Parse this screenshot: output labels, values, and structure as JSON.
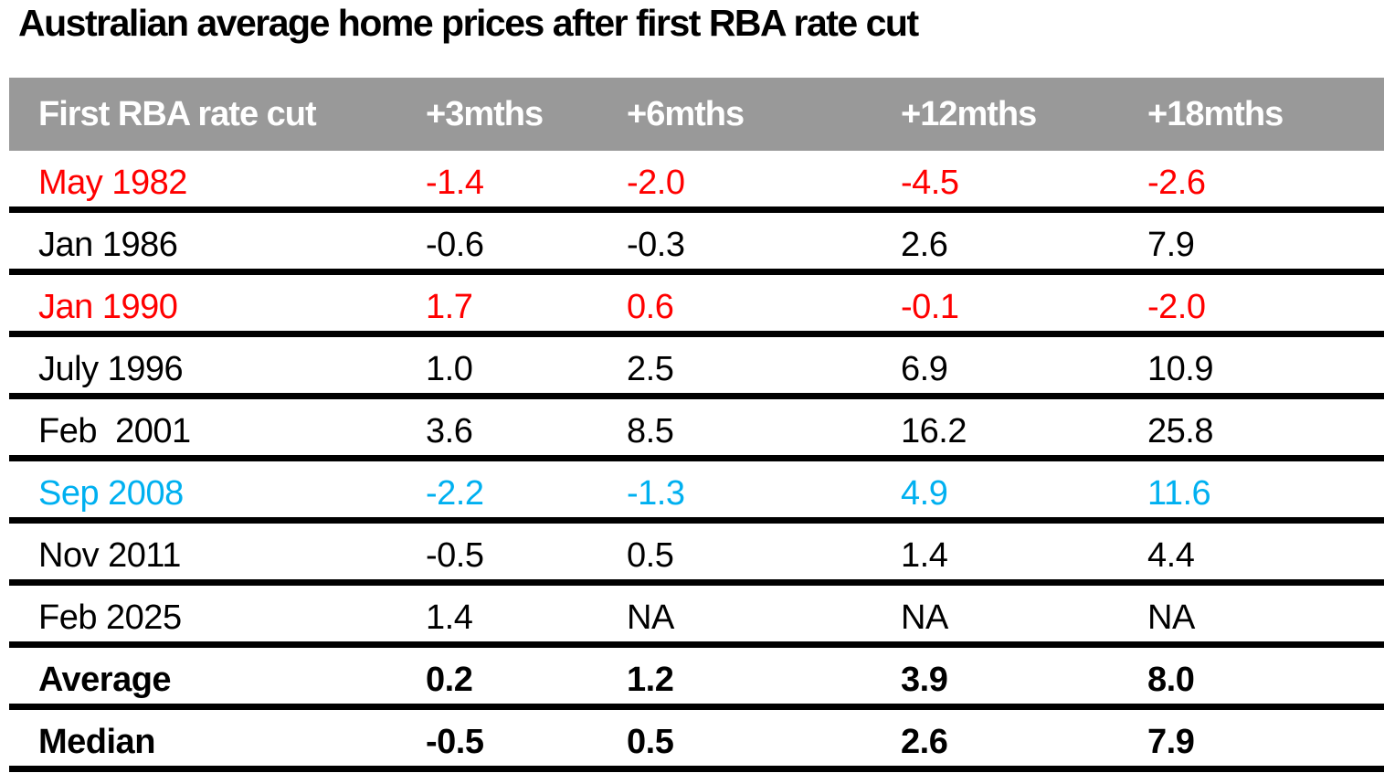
{
  "title": "Australian average home prices after first RBA rate cut",
  "colors": {
    "header_bg": "#999999",
    "header_text": "#ffffff",
    "separator": "#000000",
    "black": "#000000",
    "red": "#ff0000",
    "blue": "#00b0f0"
  },
  "table": {
    "columns": [
      "First RBA rate cut",
      "+3mths",
      "+6mths",
      "+12mths",
      "+18mths"
    ],
    "rows": [
      {
        "label": "May 1982",
        "values": [
          "-1.4",
          "-2.0",
          "-4.5",
          "-2.6"
        ],
        "color": "red",
        "bold": false
      },
      {
        "label": "Jan 1986",
        "values": [
          "-0.6",
          "-0.3",
          "2.6",
          "7.9"
        ],
        "color": "black",
        "bold": false
      },
      {
        "label": "Jan 1990",
        "values": [
          "1.7",
          "0.6",
          "-0.1",
          "-2.0"
        ],
        "color": "red",
        "bold": false
      },
      {
        "label": "July 1996",
        "values": [
          "1.0",
          "2.5",
          "6.9",
          "10.9"
        ],
        "color": "black",
        "bold": false
      },
      {
        "label": "Feb  2001",
        "values": [
          "3.6",
          "8.5",
          "16.2",
          "25.8"
        ],
        "color": "black",
        "bold": false
      },
      {
        "label": "Sep 2008",
        "values": [
          "-2.2",
          "-1.3",
          "4.9",
          "11.6"
        ],
        "color": "blue",
        "bold": false
      },
      {
        "label": "Nov 2011",
        "values": [
          "-0.5",
          "0.5",
          "1.4",
          "4.4"
        ],
        "color": "black",
        "bold": false
      },
      {
        "label": "Feb 2025",
        "values": [
          "1.4",
          "NA",
          "NA",
          "NA"
        ],
        "color": "black",
        "bold": false
      },
      {
        "label": "Average",
        "values": [
          "0.2",
          "1.2",
          "3.9",
          "8.0"
        ],
        "color": "black",
        "bold": true
      },
      {
        "label": "Median",
        "values": [
          "-0.5",
          "0.5",
          "2.6",
          "7.9"
        ],
        "color": "black",
        "bold": true
      }
    ]
  },
  "chart_data": {
    "type": "table",
    "title": "Australian average home prices after first RBA rate cut",
    "columns": [
      "First RBA rate cut",
      "+3mths",
      "+6mths",
      "+12mths",
      "+18mths"
    ],
    "rows": [
      {
        "label": "May 1982",
        "values": [
          -1.4,
          -2.0,
          -4.5,
          -2.6
        ],
        "highlight": "red"
      },
      {
        "label": "Jan 1986",
        "values": [
          -0.6,
          -0.3,
          2.6,
          7.9
        ],
        "highlight": "none"
      },
      {
        "label": "Jan 1990",
        "values": [
          1.7,
          0.6,
          -0.1,
          -2.0
        ],
        "highlight": "red"
      },
      {
        "label": "July 1996",
        "values": [
          1.0,
          2.5,
          6.9,
          10.9
        ],
        "highlight": "none"
      },
      {
        "label": "Feb 2001",
        "values": [
          3.6,
          8.5,
          16.2,
          25.8
        ],
        "highlight": "none"
      },
      {
        "label": "Sep 2008",
        "values": [
          -2.2,
          -1.3,
          4.9,
          11.6
        ],
        "highlight": "blue"
      },
      {
        "label": "Nov 2011",
        "values": [
          -0.5,
          0.5,
          1.4,
          4.4
        ],
        "highlight": "none"
      },
      {
        "label": "Feb 2025",
        "values": [
          1.4,
          "NA",
          "NA",
          "NA"
        ],
        "highlight": "none"
      },
      {
        "label": "Average",
        "values": [
          0.2,
          1.2,
          3.9,
          8.0
        ],
        "highlight": "bold"
      },
      {
        "label": "Median",
        "values": [
          -0.5,
          0.5,
          2.6,
          7.9
        ],
        "highlight": "bold"
      }
    ]
  }
}
